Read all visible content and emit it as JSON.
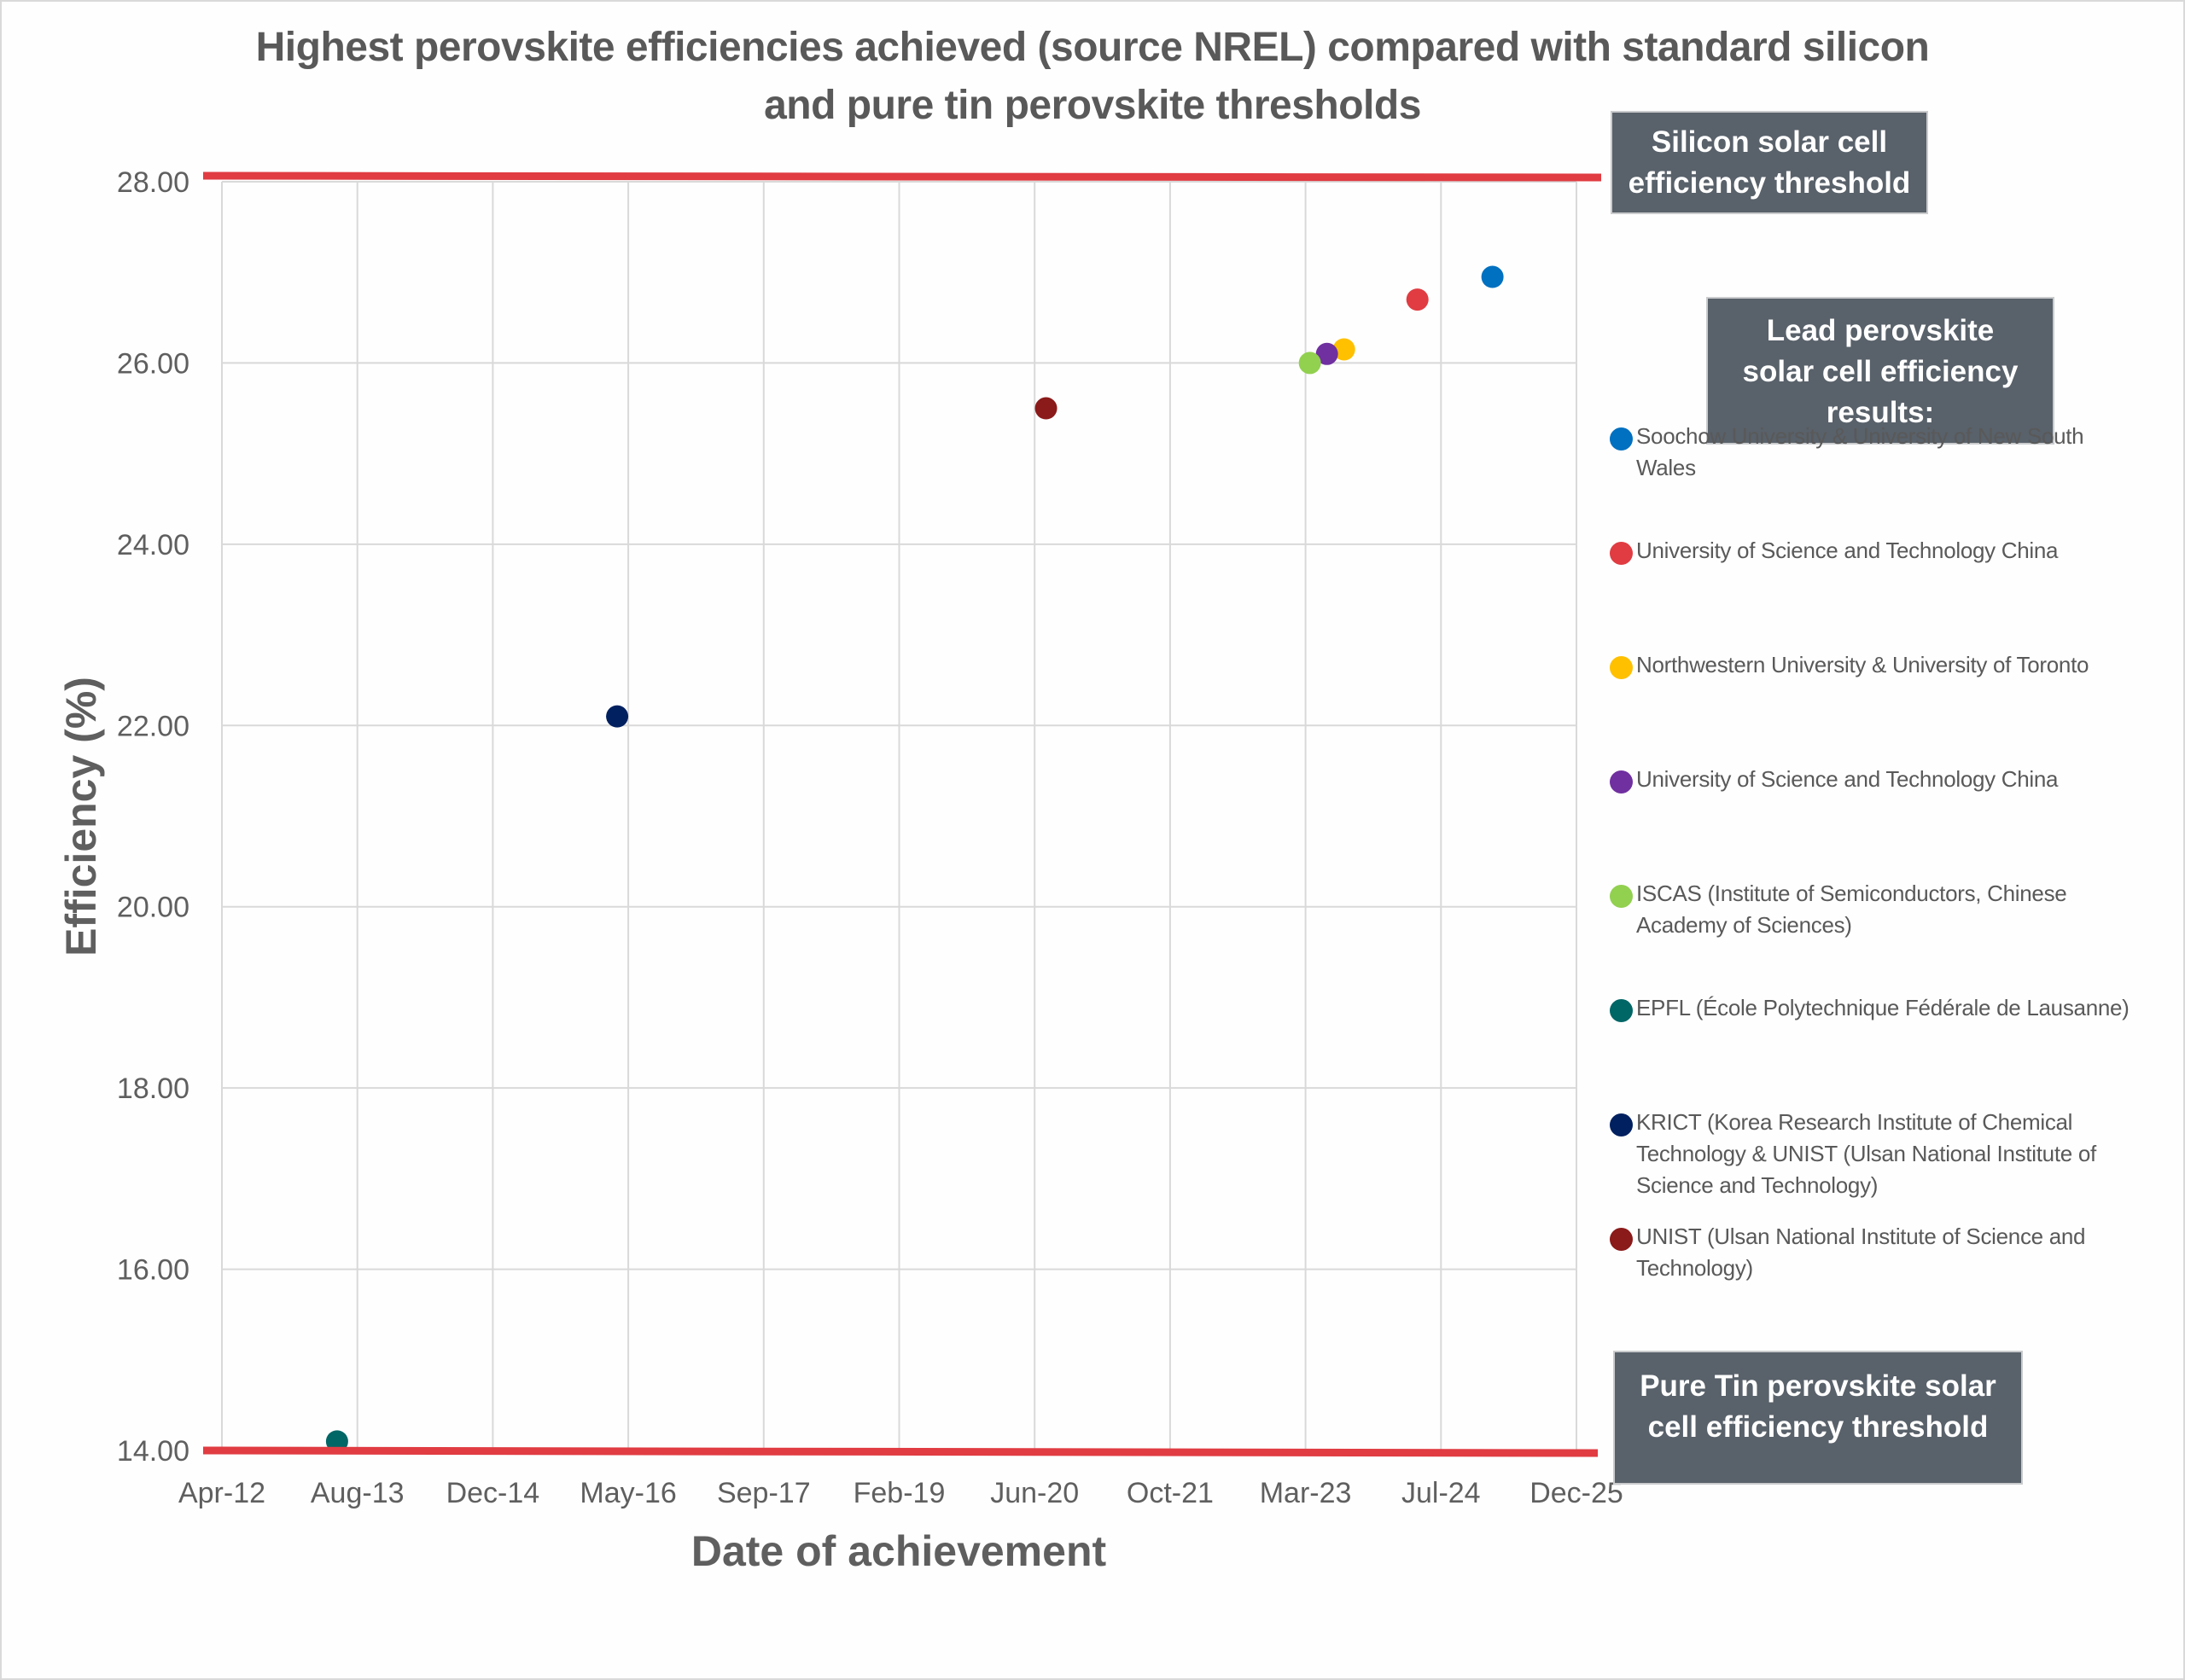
{
  "chart_data": {
    "type": "scatter",
    "title": "Highest perovskite efficiencies achieved (source NREL) compared with standard silicon and pure tin perovskite thresholds",
    "title_lines": [
      "Highest perovskite efficiencies achieved (source NREL) compared with standard silicon",
      "and pure tin perovskite thresholds"
    ],
    "xlabel": "Date of achievement",
    "ylabel": "Efficiency (%)",
    "x_axis": {
      "type": "date",
      "min": "2012-04-01",
      "max": "2025-12-09",
      "major_unit_days": 500,
      "tick_labels": [
        "Apr-12",
        "Aug-13",
        "Dec-14",
        "May-16",
        "Sep-17",
        "Feb-19",
        "Jun-20",
        "Oct-21",
        "Mar-23",
        "Jul-24",
        "Dec-25"
      ]
    },
    "y_axis": {
      "min": 14,
      "max": 28,
      "major_unit": 2,
      "tick_labels": [
        "14.00",
        "16.00",
        "18.00",
        "20.00",
        "22.00",
        "24.00",
        "26.00",
        "28.00"
      ]
    },
    "grid": true,
    "legend_title": "Lead perovskite solar cell efficiency results:",
    "legend_position": "right",
    "series": [
      {
        "name": "Soochow University & University of New South Wales",
        "color": "#0070c0",
        "x": "2025-02-02",
        "y": 26.95
      },
      {
        "name": "University of Science and Technology China",
        "color": "#e03c42",
        "x": "2024-05-01",
        "y": 26.7
      },
      {
        "name": "Northwestern University & University of Toronto",
        "color": "#ffc000",
        "x": "2023-08-04",
        "y": 26.15
      },
      {
        "name": "University of Science and Technology China",
        "color": "#7030a0",
        "x": "2023-06-02",
        "y": 26.1
      },
      {
        "name": "ISCAS (Institute of Semiconductors, Chinese Academy of Sciences)",
        "color": "#92d050",
        "x": "2023-03-31",
        "y": 26.0
      },
      {
        "name": "EPFL (École Polytechnique Fédérale de Lausanne)",
        "color": "#006666",
        "x": "2013-05-31",
        "y": 14.1
      },
      {
        "name": "KRICT (Korea Research Institute of Chemical Technology & UNIST (Ulsan National Institute of Science and Technology)",
        "color": "#002060",
        "x": "2016-03-30",
        "y": 22.1
      },
      {
        "name": "UNIST (Ulsan National Institute of Science and Technology)",
        "color": "#8b1a1a",
        "x": "2020-07-30",
        "y": 25.5
      }
    ],
    "threshold_lines": [
      {
        "name": "Silicon solar cell efficiency threshold",
        "label_lines": [
          "Silicon solar cell",
          "efficiency threshold"
        ],
        "y": 28,
        "color": "#e03c42"
      },
      {
        "name": "Pure Tin perovskite solar cell efficiency threshold",
        "label_lines": [
          "Pure Tin perovskite solar",
          "cell efficiency threshold"
        ],
        "y": 14,
        "color": "#e03c42"
      }
    ]
  },
  "colors": {
    "text": "#595959",
    "gridline": "#d9d9d9",
    "callout_fill": "#59616a",
    "threshold": "#e03c42"
  }
}
